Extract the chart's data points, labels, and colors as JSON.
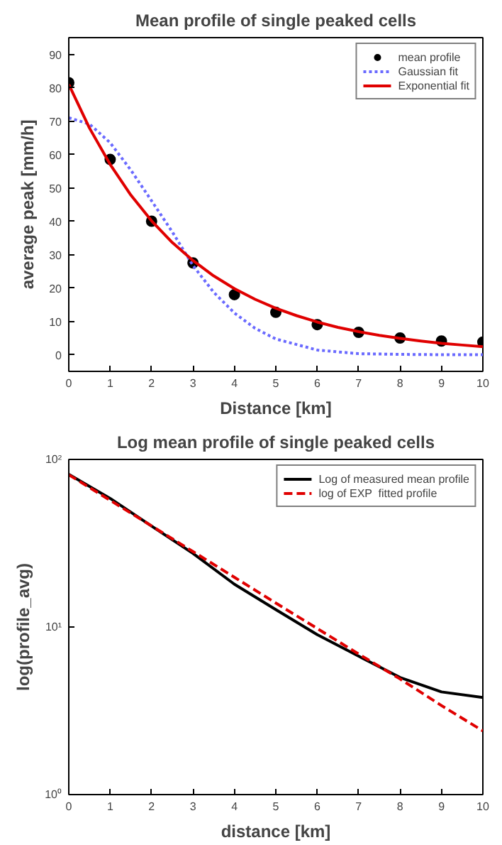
{
  "chart_data": [
    {
      "type": "line",
      "title": "Mean profile of single peaked cells",
      "xlabel": "Distance [km]",
      "ylabel": "average peak [mm/h]",
      "xlim": [
        0,
        10
      ],
      "ylim": [
        -5,
        95
      ],
      "xticks": [
        0,
        1,
        2,
        3,
        4,
        5,
        6,
        7,
        8,
        9,
        10
      ],
      "yticks": [
        0,
        10,
        20,
        30,
        40,
        50,
        60,
        70,
        80,
        90
      ],
      "grid": false,
      "legend": "top right",
      "series": [
        {
          "name": "mean profile",
          "type": "scatter",
          "marker": "circle",
          "color": "#000000",
          "x": [
            0,
            1,
            2,
            3,
            4,
            5,
            6,
            7,
            8,
            9,
            10
          ],
          "values": [
            81.5,
            58.5,
            40,
            27.5,
            18,
            12.7,
            9,
            6.7,
            5,
            4.1,
            3.8
          ]
        },
        {
          "name": "Gaussian fit",
          "line_style": "dotted",
          "color": "#6a6aff",
          "x": [
            0,
            0.5,
            1,
            1.5,
            2,
            2.5,
            3,
            3.5,
            4,
            4.5,
            5,
            6,
            7,
            8,
            9,
            10
          ],
          "values": [
            71,
            69.1,
            63.5,
            55.3,
            46.1,
            36.8,
            26.7,
            18.7,
            12.5,
            7.9,
            4.7,
            1.4,
            0.3,
            0.1,
            0,
            0
          ]
        },
        {
          "name": "Exponential fit",
          "line_style": "solid",
          "color": "#e00000",
          "x": [
            0,
            0.5,
            1,
            1.5,
            2,
            2.5,
            3,
            3.5,
            4,
            4.5,
            5,
            5.5,
            6,
            6.5,
            7,
            7.5,
            8,
            8.5,
            9,
            9.5,
            10
          ],
          "values": [
            81,
            67.9,
            57,
            47.8,
            40.1,
            33.6,
            28.2,
            23.6,
            19.8,
            16.6,
            13.9,
            11.7,
            9.8,
            8.2,
            6.9,
            5.8,
            4.9,
            4.1,
            3.4,
            2.9,
            2.4
          ]
        }
      ]
    },
    {
      "type": "line",
      "title": "Log mean profile of single peaked cells",
      "xlabel": "distance [km]",
      "ylabel": "log(profile_avg)",
      "log": "y",
      "xlim": [
        0,
        10
      ],
      "ylim": [
        1,
        100
      ],
      "xticks": [
        0,
        1,
        2,
        3,
        4,
        5,
        6,
        7,
        8,
        9,
        10
      ],
      "yticks": [
        {
          "value": 1,
          "label": "10⁰"
        },
        {
          "value": 10,
          "label": "10¹"
        },
        {
          "value": 100,
          "label": "10²"
        }
      ],
      "grid": false,
      "legend": "top right",
      "series": [
        {
          "name": "Log of measured mean profile",
          "line_style": "solid",
          "color": "#000000",
          "x": [
            0,
            1,
            2,
            3,
            4,
            5,
            6,
            7,
            8,
            9,
            10
          ],
          "values": [
            81.5,
            58.5,
            40,
            27.5,
            18,
            12.7,
            9,
            6.7,
            5,
            4.1,
            3.8
          ]
        },
        {
          "name": "log of EXP  fitted profile",
          "line_style": "dashed",
          "color": "#e00000",
          "x": [
            0,
            1,
            2,
            3,
            4,
            5,
            6,
            7,
            8,
            9,
            10
          ],
          "values": [
            81,
            57,
            40.1,
            28.2,
            19.8,
            13.9,
            9.8,
            6.9,
            4.9,
            3.4,
            2.4
          ]
        }
      ]
    }
  ]
}
